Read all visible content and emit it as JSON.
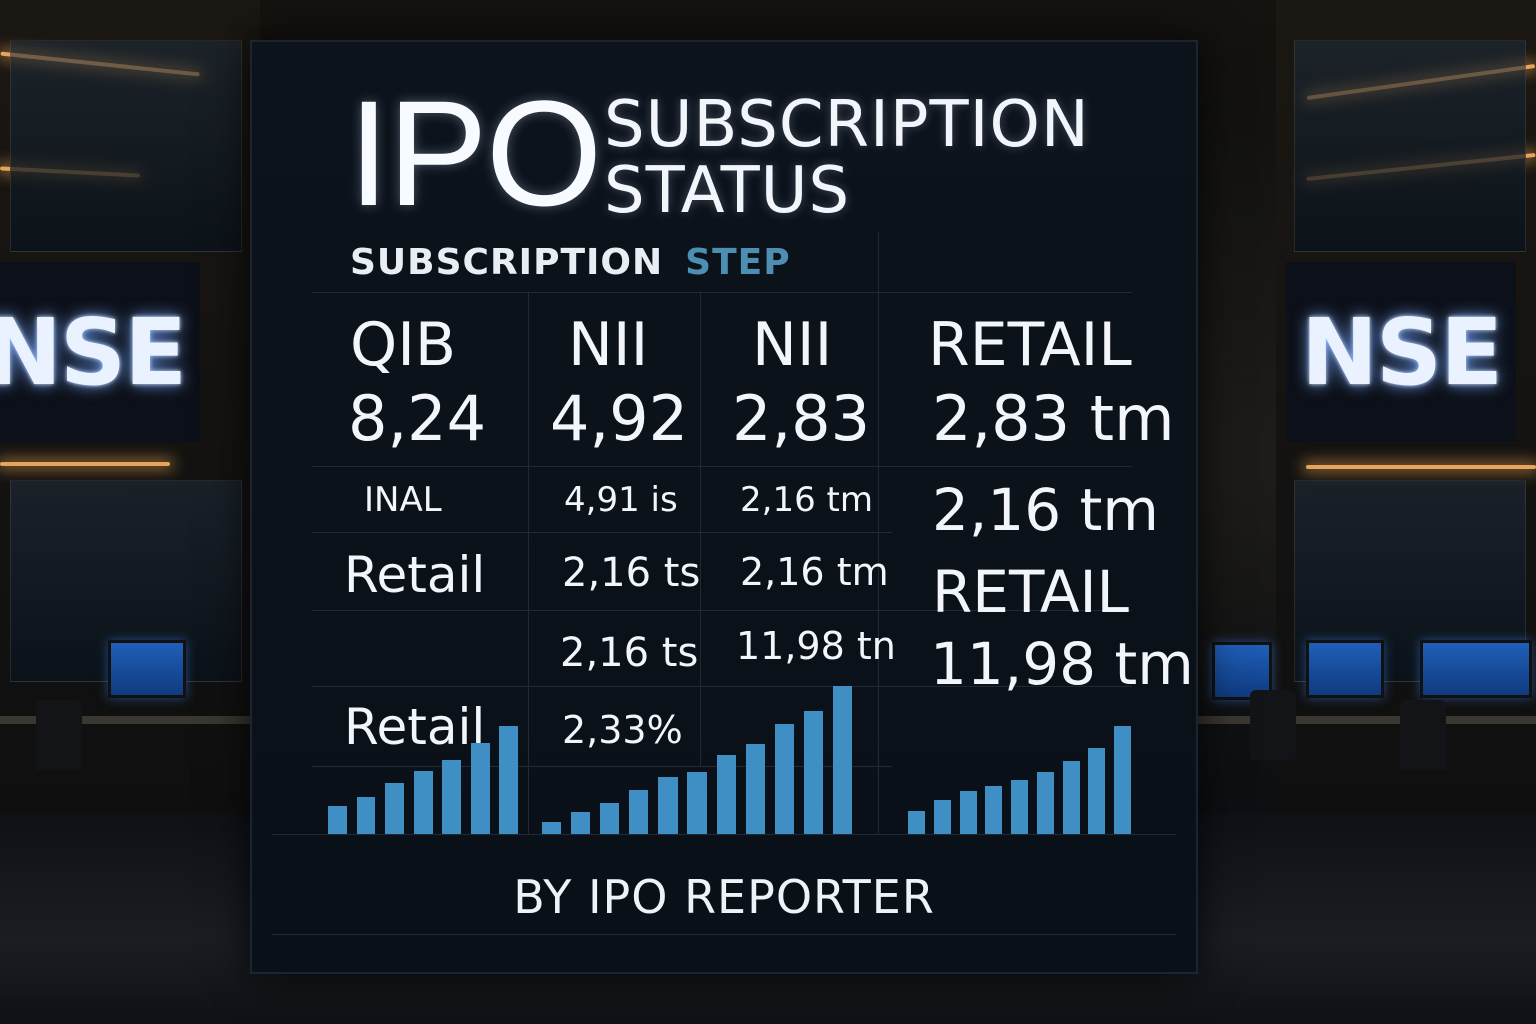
{
  "signs": {
    "left": "NSE",
    "right": "NSE"
  },
  "board": {
    "title_big": "IPO",
    "title_line1": "SUBSCRIPTION",
    "title_line2": "STATUS",
    "subhead": "SUBSCRIPTION",
    "subhead_step": "STEP",
    "columns": [
      {
        "header": "QIB",
        "value": "8,24"
      },
      {
        "header": "NII",
        "value": "4,92"
      },
      {
        "header": "NII",
        "value": "2,83"
      },
      {
        "header": "RETAIL",
        "value": "2,83 tm"
      }
    ],
    "rows": {
      "r1_label": "INAL",
      "r1_c2": "4,91 is",
      "r1_c3": "2,16 tm",
      "r1_c4": "2,16 tm",
      "r2_label": "Retail",
      "r2_c2": "2,16 ts",
      "r2_c3": "2,16 tm",
      "r2_c4": "RETAIL",
      "r3_c2": "2,16 ts",
      "r3_c3": "11,98 tn",
      "r3_c4": "11,98 tm",
      "r4_label": "Retail",
      "r4_c2": "2,33%"
    },
    "footer": "BY IPO REPORTER"
  },
  "chart_data": [
    {
      "type": "bar",
      "values": [
        1,
        1.3,
        1.8,
        2.2,
        2.6,
        3.2,
        3.8
      ]
    },
    {
      "type": "bar",
      "values": [
        1,
        1.9,
        2.7,
        3.8,
        4.9,
        5.4,
        6.8,
        7.8,
        9.5,
        10.6,
        12.8
      ]
    },
    {
      "type": "bar",
      "values": [
        2.2,
        3.2,
        4.1,
        4.5,
        5.1,
        5.9,
        6.9,
        8.1,
        10.2
      ]
    }
  ],
  "colors": {
    "bar": "#3f8fc4",
    "step_accent": "#4d8fb3",
    "light_strip": "#e6a55a"
  }
}
